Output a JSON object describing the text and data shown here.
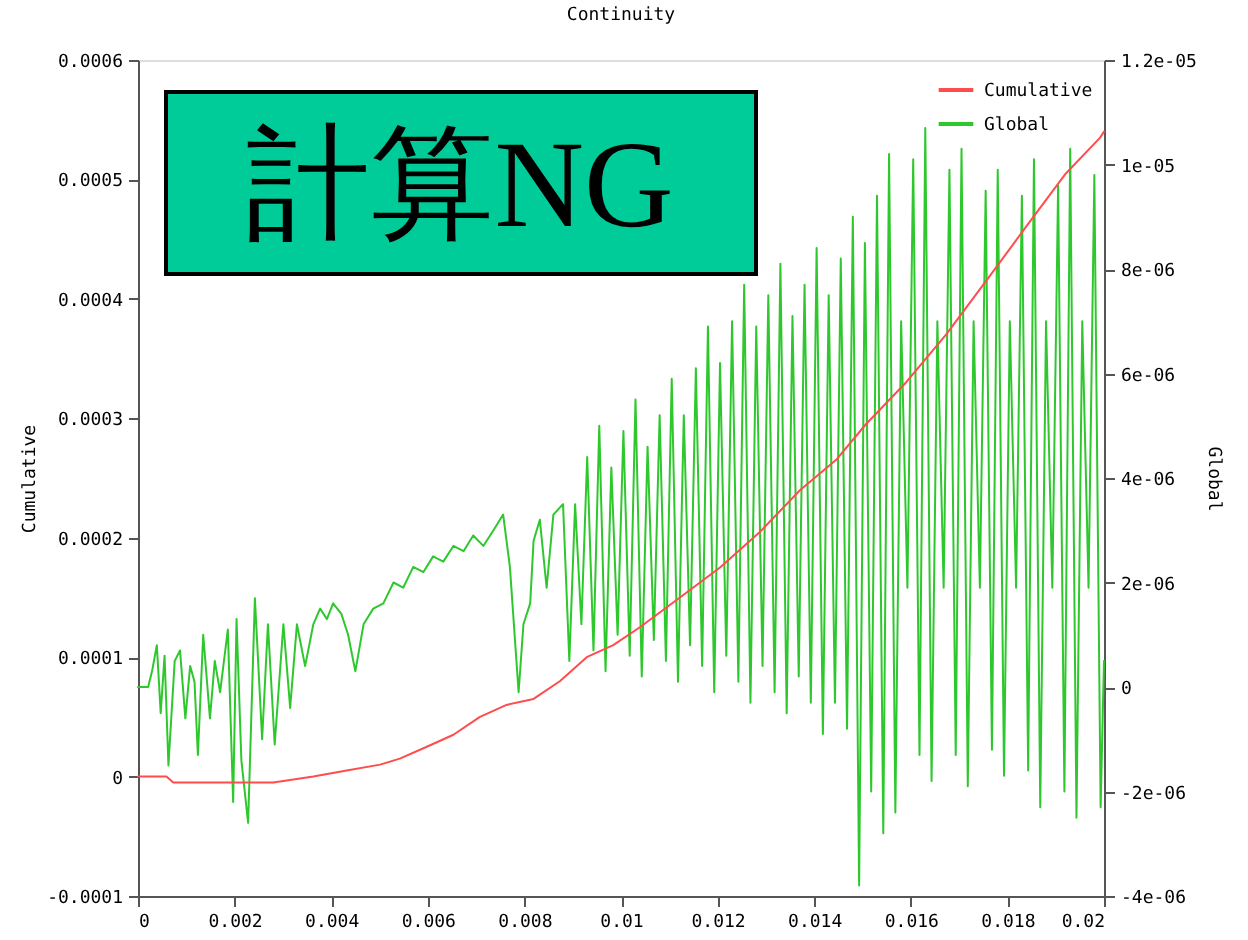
{
  "chart_data": {
    "type": "line",
    "title": "Continuity",
    "ylabel": "Cumulative",
    "y2label": "Global",
    "xlim": [
      0,
      0.02
    ],
    "xticks": [
      0,
      0.002,
      0.004,
      0.006,
      0.008,
      0.01,
      0.012,
      0.014,
      0.016,
      0.018,
      0.02
    ],
    "ylim": [
      -0.0001,
      0.0006
    ],
    "yticks": [
      -0.0001,
      0,
      0.0001,
      0.0002,
      0.0003,
      0.0004,
      0.0005,
      0.0006
    ],
    "y2lim": [
      -4e-06,
      1.2e-05
    ],
    "y2ticks": [
      -4e-06,
      -2e-06,
      0,
      2e-06,
      4e-06,
      6e-06,
      8e-06,
      1e-05,
      1.2e-05
    ],
    "legend": "top right",
    "annotations": [
      "計算NG"
    ],
    "series": [
      {
        "name": "Cumulative",
        "color": "#ff4d4d",
        "x": [
          0,
          0.00059,
          0.00073,
          0.00128,
          0.002,
          0.0028,
          0.00363,
          0.00432,
          0.00501,
          0.00542,
          0.00598,
          0.00653,
          0.00708,
          0.00763,
          0.00819,
          0.00874,
          0.00929,
          0.00984,
          0.01039,
          0.01122,
          0.01205,
          0.01288,
          0.01371,
          0.01445,
          0.01507,
          0.0159,
          0.01673,
          0.01756,
          0.01838,
          0.01921,
          0.01992,
          0.02
        ],
        "values": [
          0,
          0,
          -5e-06,
          -5e-06,
          -5e-06,
          -5e-06,
          0,
          5e-06,
          1e-05,
          1.5e-05,
          2.5e-05,
          3.5e-05,
          5e-05,
          6e-05,
          6.5e-05,
          8e-05,
          0.0001,
          0.00011,
          0.000125,
          0.00015,
          0.000175,
          0.000205,
          0.00024,
          0.000265,
          0.000295,
          0.00033,
          0.00037,
          0.000415,
          0.00046,
          0.000505,
          0.000535,
          0.00054
        ]
      },
      {
        "name": "Global",
        "color": "#2ec82e",
        "axis": "y2",
        "x": [
          0,
          0.00021,
          0.00029,
          0.00039,
          0.00047,
          0.00055,
          0.00063,
          0.00076,
          0.00087,
          0.00098,
          0.00108,
          0.00117,
          0.00124,
          0.00135,
          0.00149,
          0.00159,
          0.0017,
          0.00186,
          0.00197,
          0.00204,
          0.00214,
          0.00228,
          0.00242,
          0.00257,
          0.00269,
          0.00283,
          0.00301,
          0.00315,
          0.00329,
          0.00346,
          0.00363,
          0.00377,
          0.00391,
          0.00404,
          0.00421,
          0.00435,
          0.0045,
          0.00467,
          0.00487,
          0.00508,
          0.00529,
          0.00549,
          0.0057,
          0.00591,
          0.00611,
          0.00632,
          0.00653,
          0.00674,
          0.00694,
          0.00715,
          0.00736,
          0.00756,
          0.0077,
          0.00788,
          0.00798,
          0.00812,
          0.00819,
          0.00832,
          0.00846,
          0.0086,
          0.0088,
          0.00893,
          0.00905,
          0.00918,
          0.0093,
          0.00943,
          0.00955,
          0.00968,
          0.0098,
          0.00993,
          0.01005,
          0.01018,
          0.0103,
          0.01043,
          0.01055,
          0.01068,
          0.0108,
          0.01093,
          0.01105,
          0.01118,
          0.0113,
          0.01143,
          0.01155,
          0.01168,
          0.0118,
          0.01193,
          0.01205,
          0.01218,
          0.0123,
          0.01243,
          0.01255,
          0.01268,
          0.0128,
          0.01293,
          0.01305,
          0.01318,
          0.0133,
          0.01343,
          0.01355,
          0.01368,
          0.0138,
          0.01393,
          0.01405,
          0.01418,
          0.0143,
          0.01443,
          0.01455,
          0.01468,
          0.0148,
          0.01493,
          0.01505,
          0.01518,
          0.0153,
          0.01543,
          0.01555,
          0.01568,
          0.0158,
          0.01593,
          0.01605,
          0.01618,
          0.0163,
          0.01643,
          0.01655,
          0.01668,
          0.0168,
          0.01693,
          0.01705,
          0.01718,
          0.0173,
          0.01743,
          0.01755,
          0.01768,
          0.0178,
          0.01793,
          0.01805,
          0.01818,
          0.0183,
          0.01843,
          0.01855,
          0.01868,
          0.0188,
          0.01893,
          0.01905,
          0.01918,
          0.0193,
          0.01943,
          0.01955,
          0.01968,
          0.0198,
          0.01993,
          0.02
        ],
        "values": [
          0,
          0,
          3e-07,
          8e-07,
          -5e-07,
          6e-07,
          -1.5e-06,
          5e-07,
          7e-07,
          -6e-07,
          4e-07,
          1e-07,
          -1.3e-06,
          1e-06,
          -6e-07,
          5e-07,
          -1e-07,
          1.1e-06,
          -2.2e-06,
          1.3e-06,
          -1.4e-06,
          -2.6e-06,
          1.7e-06,
          -1e-06,
          1.2e-06,
          -1.1e-06,
          1.2e-06,
          -4e-07,
          1.2e-06,
          4e-07,
          1.2e-06,
          1.5e-06,
          1.3e-06,
          1.6e-06,
          1.4e-06,
          1e-06,
          3e-07,
          1.2e-06,
          1.5e-06,
          1.6e-06,
          2e-06,
          1.9e-06,
          2.3e-06,
          2.2e-06,
          2.5e-06,
          2.4e-06,
          2.7e-06,
          2.6e-06,
          2.9e-06,
          2.7e-06,
          3e-06,
          3.3e-06,
          2.3e-06,
          -1e-07,
          1.2e-06,
          1.6e-06,
          2.8e-06,
          3.2e-06,
          1.9e-06,
          3.3e-06,
          3.5e-06,
          5e-07,
          3.5e-06,
          1.2e-06,
          4.4e-06,
          7e-07,
          5e-06,
          3e-07,
          4.2e-06,
          1e-06,
          4.9e-06,
          6e-07,
          5.5e-06,
          2e-07,
          4.6e-06,
          9e-07,
          5.2e-06,
          5e-07,
          5.9e-06,
          1e-07,
          5.2e-06,
          8e-07,
          6.1e-06,
          4e-07,
          6.9e-06,
          -1e-07,
          6.2e-06,
          6e-07,
          7e-06,
          1e-07,
          7.7e-06,
          -3e-07,
          6.9e-06,
          4e-07,
          7.5e-06,
          -1e-07,
          8.1e-06,
          -5e-07,
          7.1e-06,
          2e-07,
          7.7e-06,
          -3e-07,
          8.4e-06,
          -9e-07,
          7.5e-06,
          -3e-07,
          8.2e-06,
          -8e-07,
          9e-06,
          -3.8e-06,
          8.5e-06,
          -2e-06,
          9.4e-06,
          -2.8e-06,
          1.02e-05,
          -2.4e-06,
          7e-06,
          1.9e-06,
          1.01e-05,
          -1.3e-06,
          1.07e-05,
          -1.8e-06,
          7e-06,
          1.9e-06,
          9.9e-06,
          -1.3e-06,
          1.03e-05,
          -1.9e-06,
          7e-06,
          1.9e-06,
          9.5e-06,
          -1.2e-06,
          9.9e-06,
          -1.7e-06,
          7e-06,
          1.9e-06,
          9.4e-06,
          -1.6e-06,
          1.01e-05,
          -2.3e-06,
          7e-06,
          1.9e-06,
          9.6e-06,
          -2e-06,
          1.03e-05,
          -2.5e-06,
          7e-06,
          1.9e-06,
          9.8e-06,
          -2.3e-06,
          5e-07
        ]
      }
    ]
  }
}
